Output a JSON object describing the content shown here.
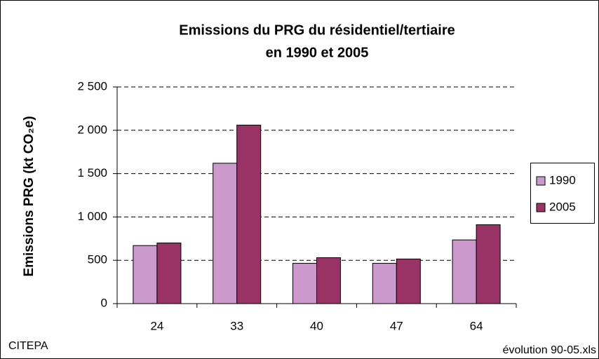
{
  "chart_data": {
    "type": "bar",
    "title": [
      "Emissions du PRG du résidentiel/tertiaire",
      "en 1990 et 2005"
    ],
    "ylabel": "Emissions PRG (kt CO₂e)",
    "categories": [
      "24",
      "33",
      "40",
      "47",
      "64"
    ],
    "series": [
      {
        "name": "1990",
        "color": "#cc99cc",
        "values": [
          670,
          1620,
          465,
          465,
          735
        ]
      },
      {
        "name": "2005",
        "color": "#993366",
        "values": [
          700,
          2060,
          530,
          515,
          910
        ]
      }
    ],
    "ylim": [
      0,
      2500
    ],
    "yticks": [
      0,
      500,
      {
        "value": 1000,
        "label": "1 000"
      },
      {
        "value": 1500,
        "label": "1 500"
      },
      {
        "value": 2000,
        "label": "2 000"
      },
      {
        "value": 2500,
        "label": "2 500"
      }
    ],
    "grid": true,
    "legend": "right",
    "source": "CITEPA",
    "file": "évolution 90-05.xls"
  }
}
